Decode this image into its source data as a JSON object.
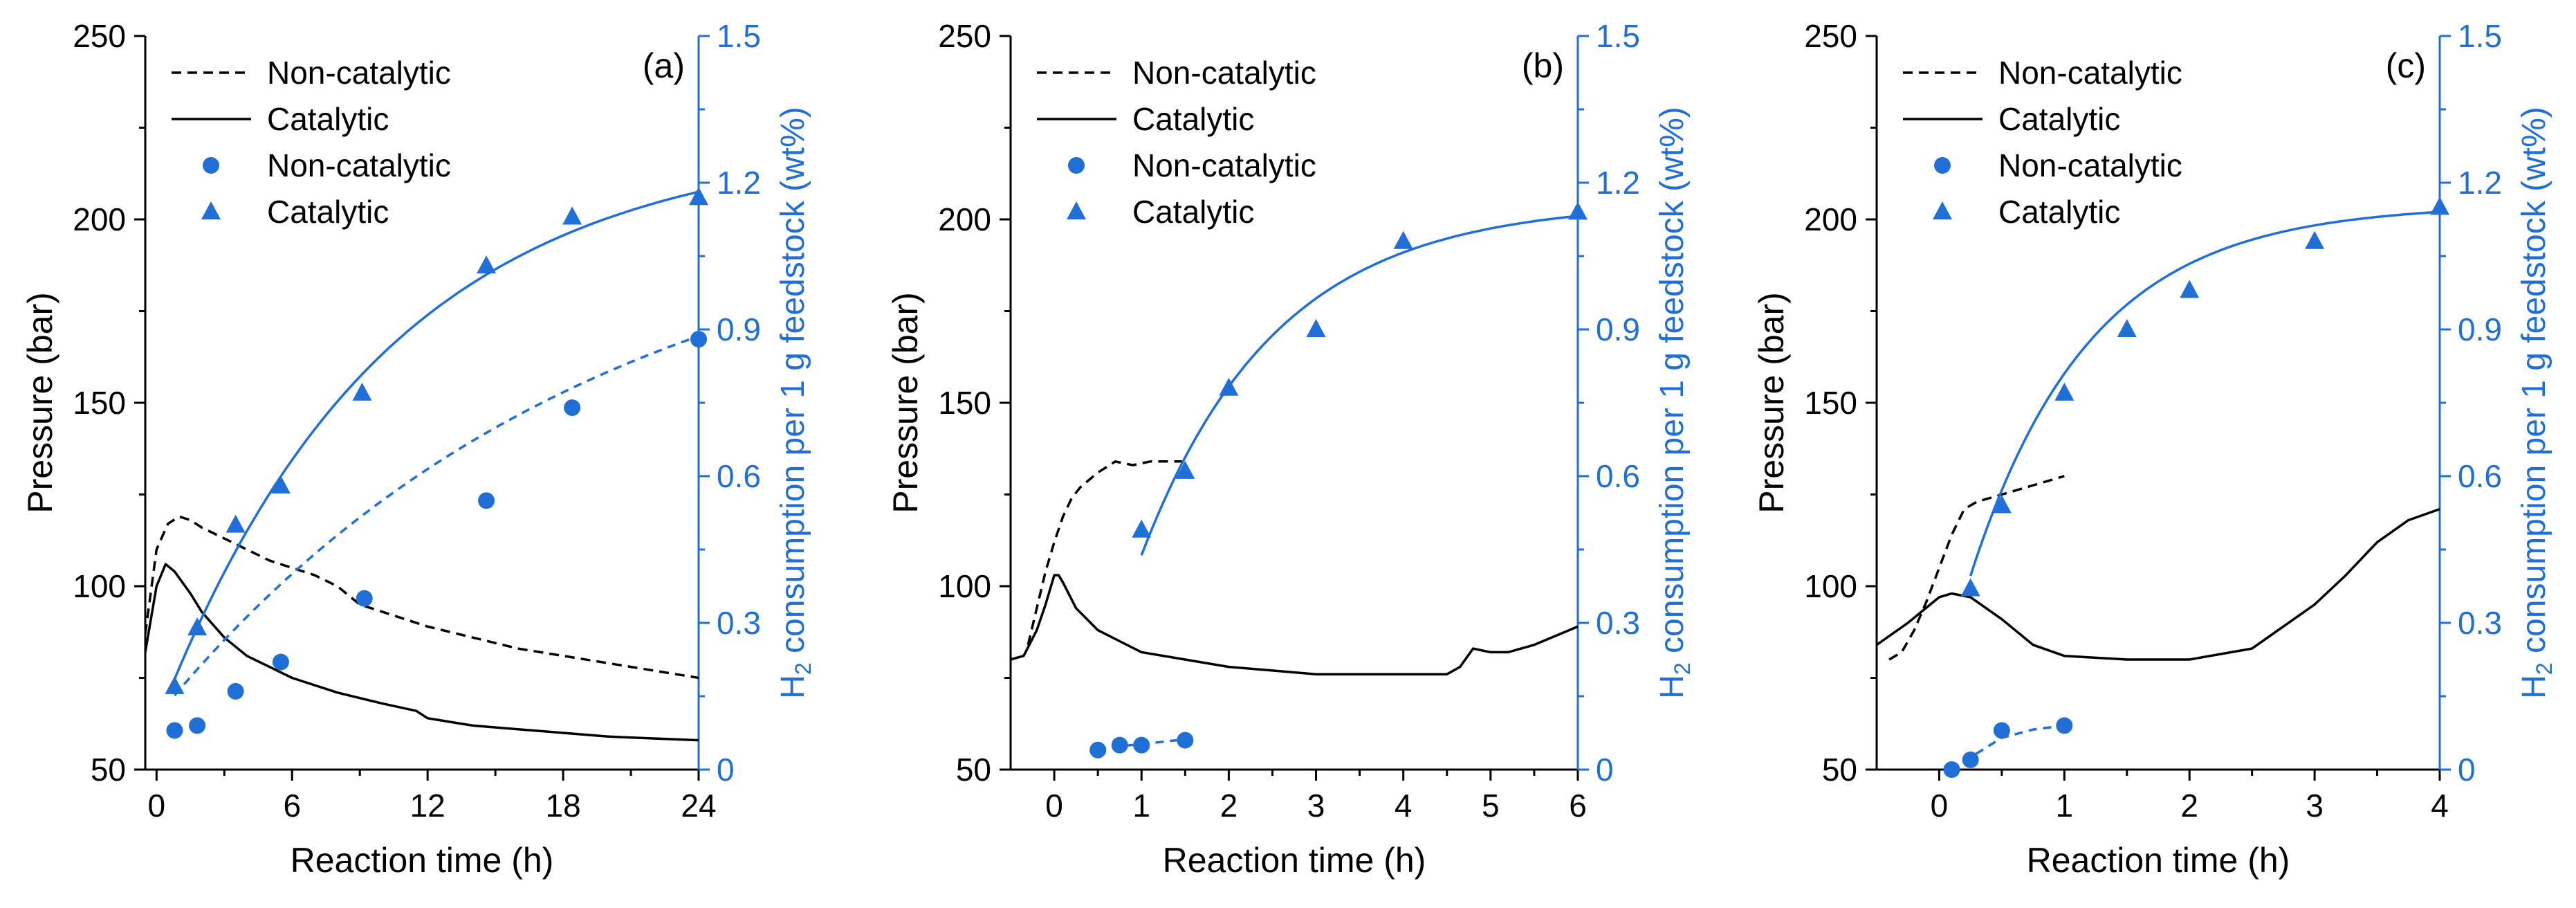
{
  "colors": {
    "axis_left": "#000000",
    "axis_right": "#1f6fd6",
    "pressure": "#000000",
    "h2": "#1f6fd6"
  },
  "chart_data": [
    {
      "type": "line",
      "panel_label": "(a)",
      "xlabel": "Reaction time (h)",
      "ylabel": "Pressure (bar)",
      "y2label_pre": "H",
      "y2label_sub": "2",
      "y2label_post": " consumption per 1 g feedstock (wt%)",
      "xlim": [
        -0.5,
        24
      ],
      "xticks": [
        0,
        6,
        12,
        18,
        24
      ],
      "ylim": [
        50,
        250
      ],
      "yticks": [
        50,
        100,
        150,
        200,
        250
      ],
      "y2lim": [
        0,
        1.5
      ],
      "y2ticks": [
        "0",
        "0.3",
        "0.6",
        "0.9",
        "1.2",
        "1.5"
      ],
      "legend": [
        {
          "label": "Non-catalytic",
          "kind": "dashed-line"
        },
        {
          "label": "Catalytic",
          "kind": "solid-line"
        },
        {
          "label": "Non-catalytic",
          "kind": "circle"
        },
        {
          "label": "Catalytic",
          "kind": "triangle"
        }
      ],
      "pressure_series": [
        {
          "name": "Non-catalytic",
          "style": "dashed",
          "x": [
            -0.5,
            0,
            0.5,
            1,
            1.5,
            2,
            3,
            4,
            5,
            6,
            7,
            8,
            9,
            10,
            12,
            14,
            16,
            18,
            20,
            22,
            24
          ],
          "y": [
            87,
            110,
            117,
            119,
            118,
            116,
            113,
            110,
            107,
            105,
            103,
            100,
            95,
            93,
            89,
            86,
            83,
            81,
            79,
            77,
            75
          ]
        },
        {
          "name": "Catalytic",
          "style": "solid",
          "x": [
            -0.5,
            0,
            0.4,
            0.8,
            1.5,
            2,
            3,
            4,
            5,
            6,
            8,
            10,
            11.5,
            12,
            13,
            14,
            16,
            18,
            20,
            22,
            24
          ],
          "y": [
            82,
            100,
            106,
            104,
            98,
            93,
            86,
            81,
            78,
            75,
            71,
            68,
            66,
            64,
            63,
            62,
            61,
            60,
            59,
            58.5,
            58
          ]
        }
      ],
      "h2_series": [
        {
          "name": "Non-catalytic",
          "marker": "circle",
          "x": [
            0.8,
            1.8,
            3.5,
            5.5,
            9.2,
            14.6,
            18.4,
            24
          ],
          "y": [
            0.08,
            0.09,
            0.16,
            0.22,
            0.35,
            0.55,
            0.74,
            0.88
          ]
        },
        {
          "name": "Catalytic",
          "marker": "triangle",
          "x": [
            0.8,
            1.8,
            3.5,
            5.5,
            9.1,
            14.6,
            18.4,
            24
          ],
          "y": [
            0.17,
            0.29,
            0.5,
            0.58,
            0.77,
            1.03,
            1.13,
            1.17
          ]
        }
      ],
      "h2_fits": [
        {
          "name": "Non-catalytic",
          "style": "dashed",
          "x0": 0.8,
          "x1": 24,
          "Amax": 1.2,
          "k": 0.052,
          "t0": -1.8
        },
        {
          "name": "Catalytic",
          "style": "solid",
          "x0": 0.8,
          "x1": 24,
          "Amax": 1.29,
          "k": 0.1,
          "t0": -0.75
        }
      ]
    },
    {
      "type": "line",
      "panel_label": "(b)",
      "xlabel": "Reaction time (h)",
      "ylabel": "Pressure (bar)",
      "y2label_pre": "H",
      "y2label_sub": "2",
      "y2label_post": " consumption per 1 g feedstock (wt%)",
      "xlim": [
        -0.5,
        6
      ],
      "xticks": [
        0,
        1,
        2,
        3,
        4,
        5,
        6
      ],
      "ylim": [
        50,
        250
      ],
      "yticks": [
        50,
        100,
        150,
        200,
        250
      ],
      "y2lim": [
        0,
        1.5
      ],
      "y2ticks": [
        "0",
        "0.3",
        "0.6",
        "0.9",
        "1.2",
        "1.5"
      ],
      "legend": [
        {
          "label": "Non-catalytic",
          "kind": "dashed-line"
        },
        {
          "label": "Catalytic",
          "kind": "solid-line"
        },
        {
          "label": "Non-catalytic",
          "kind": "circle"
        },
        {
          "label": "Catalytic",
          "kind": "triangle"
        }
      ],
      "pressure_series": [
        {
          "name": "Non-catalytic",
          "style": "dashed",
          "x": [
            -0.3,
            -0.2,
            -0.1,
            0,
            0.1,
            0.2,
            0.3,
            0.5,
            0.7,
            0.9,
            1.1,
            1.3,
            1.5
          ],
          "y": [
            84,
            94,
            104,
            112,
            119,
            124,
            127,
            131,
            134,
            133,
            134,
            134,
            134
          ]
        },
        {
          "name": "Catalytic",
          "style": "solid",
          "x": [
            -0.5,
            -0.35,
            -0.2,
            -0.1,
            0,
            0.05,
            0.1,
            0.25,
            0.5,
            0.75,
            1,
            1.5,
            2,
            2.5,
            3,
            3.5,
            4,
            4.5,
            4.65,
            4.8,
            5,
            5.2,
            5.5,
            5.8,
            6
          ],
          "y": [
            80,
            81,
            88,
            95,
            103,
            103,
            101,
            94,
            88,
            85,
            82,
            80,
            78,
            77,
            76,
            76,
            76,
            76,
            78,
            83,
            82,
            82,
            84,
            87,
            89
          ]
        }
      ],
      "h2_series": [
        {
          "name": "Non-catalytic",
          "marker": "circle",
          "x": [
            0.5,
            0.75,
            1.0,
            1.5
          ],
          "y": [
            0.04,
            0.05,
            0.05,
            0.06
          ]
        },
        {
          "name": "Catalytic",
          "marker": "triangle",
          "x": [
            1.0,
            1.5,
            2.0,
            3.0,
            4.0,
            6.0
          ],
          "y": [
            0.49,
            0.61,
            0.78,
            0.9,
            1.08,
            1.14
          ]
        }
      ],
      "h2_fits": [
        {
          "name": "Non-catalytic",
          "style": "dashed",
          "points": [
            [
              0.5,
              0.04
            ],
            [
              0.75,
              0.048
            ],
            [
              1.0,
              0.052
            ],
            [
              1.5,
              0.062
            ]
          ]
        },
        {
          "name": "Catalytic",
          "style": "solid",
          "x0": 1.0,
          "x1": 6,
          "Amax": 1.16,
          "k": 0.65,
          "t0": 0.27
        }
      ]
    },
    {
      "type": "line",
      "panel_label": "(c)",
      "xlabel": "Reaction time (h)",
      "ylabel": "Pressure (bar)",
      "y2label_pre": "H",
      "y2label_sub": "2",
      "y2label_post": " consumption per 1 g feedstock (wt%)",
      "xlim": [
        -0.5,
        4
      ],
      "xticks": [
        0,
        1,
        2,
        3,
        4
      ],
      "ylim": [
        50,
        250
      ],
      "yticks": [
        50,
        100,
        150,
        200,
        250
      ],
      "y2lim": [
        0,
        1.5
      ],
      "y2ticks": [
        "0",
        "0.3",
        "0.6",
        "0.9",
        "1.2",
        "1.5"
      ],
      "legend": [
        {
          "label": "Non-catalytic",
          "kind": "dashed-line"
        },
        {
          "label": "Catalytic",
          "kind": "solid-line"
        },
        {
          "label": "Non-catalytic",
          "kind": "circle"
        },
        {
          "label": "Catalytic",
          "kind": "triangle"
        }
      ],
      "pressure_series": [
        {
          "name": "Non-catalytic",
          "style": "dashed",
          "x": [
            -0.4,
            -0.3,
            -0.2,
            -0.1,
            0,
            0.1,
            0.2,
            0.3,
            0.5,
            0.7,
            0.9,
            1.0
          ],
          "y": [
            80,
            82,
            88,
            96,
            105,
            114,
            121,
            123,
            125,
            127,
            129,
            130
          ]
        },
        {
          "name": "Catalytic",
          "style": "solid",
          "x": [
            -0.5,
            -0.25,
            0,
            0.1,
            0.25,
            0.5,
            0.75,
            1,
            1.5,
            2,
            2.5,
            3,
            3.25,
            3.5,
            3.75,
            4
          ],
          "y": [
            84,
            90,
            97,
            98,
            97,
            91,
            84,
            81,
            80,
            80,
            83,
            95,
            103,
            112,
            118,
            121
          ]
        }
      ],
      "h2_series": [
        {
          "name": "Non-catalytic",
          "marker": "circle",
          "x": [
            0.1,
            0.25,
            0.5,
            1.0
          ],
          "y": [
            0.0,
            0.02,
            0.08,
            0.09
          ]
        },
        {
          "name": "Catalytic",
          "marker": "triangle",
          "x": [
            0.25,
            0.5,
            1.0,
            1.5,
            2.0,
            3.0,
            4.0
          ],
          "y": [
            0.37,
            0.54,
            0.77,
            0.9,
            0.98,
            1.08,
            1.15
          ]
        }
      ],
      "h2_fits": [
        {
          "name": "Non-catalytic",
          "style": "dashed",
          "points": [
            [
              0.1,
              0.0
            ],
            [
              0.25,
              0.025
            ],
            [
              0.5,
              0.065
            ],
            [
              0.75,
              0.082
            ],
            [
              1.0,
              0.09
            ]
          ]
        },
        {
          "name": "Catalytic",
          "style": "solid",
          "x0": 0.25,
          "x1": 4,
          "Amax": 1.155,
          "k": 1.05,
          "t0": -0.15
        }
      ]
    }
  ]
}
